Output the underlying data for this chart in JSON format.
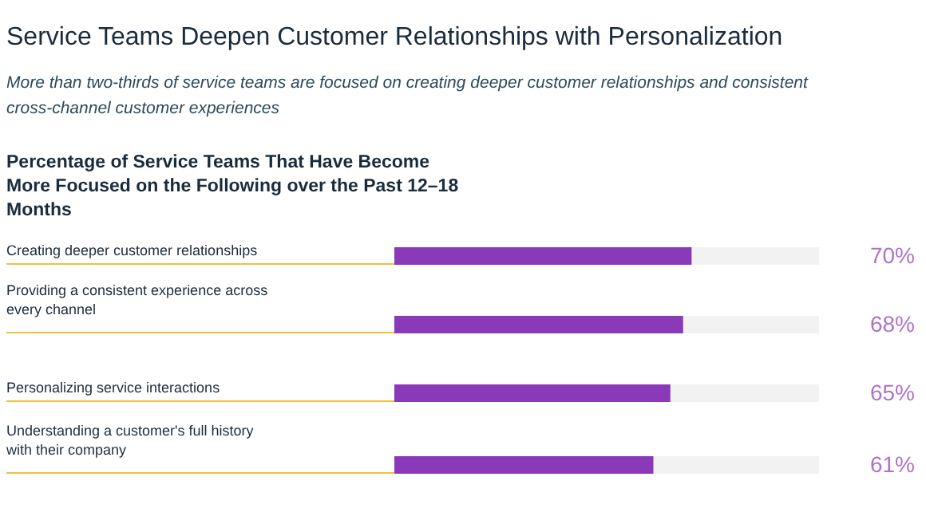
{
  "chart_data": {
    "type": "bar",
    "orientation": "horizontal",
    "title": "Service Teams Deepen Customer Relationships with Personalization",
    "subtitle": "More than two-thirds of service teams are focused on creating deeper customer relationships and consistent cross-channel customer experiences",
    "annotations": [
      "Percentage of Service Teams That Have Become More Focused on the Following over the Past 12–18 Months"
    ],
    "categories": [
      "Creating deeper customer relationships",
      "Providing a consistent experience across every channel",
      "Personalizing service interactions",
      "Understanding a customer's full history with their company"
    ],
    "values": [
      70,
      68,
      65,
      61
    ],
    "value_labels": [
      "70%",
      "68%",
      "65%",
      "61%"
    ],
    "color": "#8a3ab9",
    "xlim": [
      0,
      100
    ],
    "tick_labels": "y"
  }
}
